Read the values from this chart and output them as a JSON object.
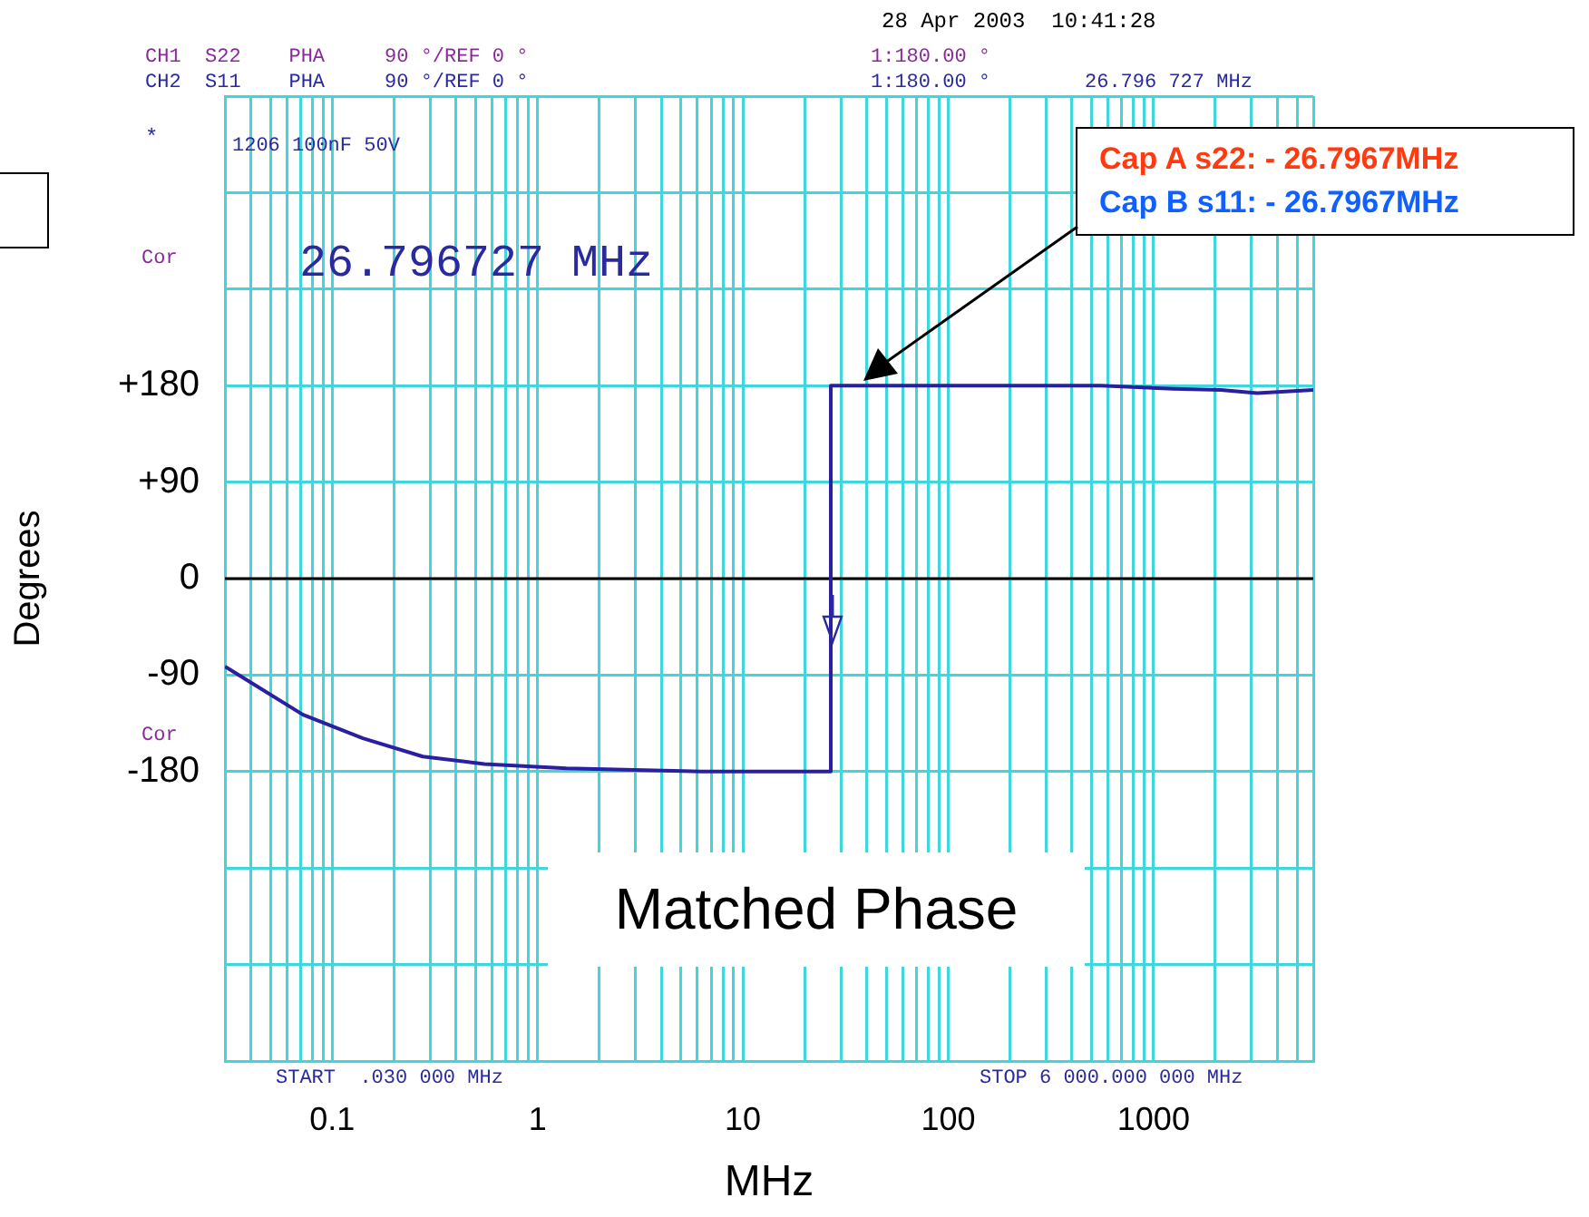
{
  "chart_data": {
    "type": "line",
    "xlabel": "MHz",
    "ylabel": "Degrees",
    "log": "x",
    "grid": true,
    "legend": false,
    "xlim": [
      0.03,
      6000
    ],
    "ylim": [
      -450,
      450
    ],
    "xticks": [
      {
        "value": 0.03,
        "label": null
      },
      {
        "value": 0.04,
        "label": null
      },
      {
        "value": 0.05,
        "label": null
      },
      {
        "value": 0.06,
        "label": null
      },
      {
        "value": 0.07,
        "label": null
      },
      {
        "value": 0.08,
        "label": null
      },
      {
        "value": 0.09,
        "label": null
      },
      {
        "value": 0.1,
        "label": "0.1"
      },
      {
        "value": 0.2,
        "label": null
      },
      {
        "value": 0.3,
        "label": null
      },
      {
        "value": 0.4,
        "label": null
      },
      {
        "value": 0.5,
        "label": null
      },
      {
        "value": 0.6,
        "label": null
      },
      {
        "value": 0.7,
        "label": null
      },
      {
        "value": 0.8,
        "label": null
      },
      {
        "value": 0.9,
        "label": null
      },
      1,
      {
        "value": 2,
        "label": null
      },
      {
        "value": 3,
        "label": null
      },
      {
        "value": 4,
        "label": null
      },
      {
        "value": 5,
        "label": null
      },
      {
        "value": 6,
        "label": null
      },
      {
        "value": 7,
        "label": null
      },
      {
        "value": 8,
        "label": null
      },
      {
        "value": 9,
        "label": null
      },
      10,
      {
        "value": 20,
        "label": null
      },
      {
        "value": 30,
        "label": null
      },
      {
        "value": 40,
        "label": null
      },
      {
        "value": 50,
        "label": null
      },
      {
        "value": 60,
        "label": null
      },
      {
        "value": 70,
        "label": null
      },
      {
        "value": 80,
        "label": null
      },
      {
        "value": 90,
        "label": null
      },
      100,
      {
        "value": 200,
        "label": null
      },
      {
        "value": 300,
        "label": null
      },
      {
        "value": 400,
        "label": null
      },
      {
        "value": 500,
        "label": null
      },
      {
        "value": 600,
        "label": null
      },
      {
        "value": 700,
        "label": null
      },
      {
        "value": 800,
        "label": null
      },
      {
        "value": 900,
        "label": null
      },
      1000,
      {
        "value": 2000,
        "label": null
      },
      {
        "value": 3000,
        "label": null
      },
      {
        "value": 4000,
        "label": null
      },
      {
        "value": 5000,
        "label": null
      },
      {
        "value": 6000,
        "label": null
      }
    ],
    "yticks": [
      {
        "value": -450,
        "label": null
      },
      {
        "value": -360,
        "label": null
      },
      {
        "value": -270,
        "label": null
      },
      -180,
      -90,
      0,
      {
        "value": 90,
        "label": "+90"
      },
      {
        "value": 180,
        "label": "+180"
      },
      {
        "value": 270,
        "label": null
      },
      {
        "value": 360,
        "label": null
      },
      {
        "value": 450,
        "label": null
      }
    ],
    "ref_lines": [
      {
        "axis": "y",
        "value": 0,
        "color": "#000000"
      }
    ],
    "series": [
      {
        "color": "#2a1fa0",
        "x": [
          0.03,
          0.072,
          0.141,
          0.276,
          0.55,
          1.38,
          6.3,
          26.8,
          26.8,
          555,
          1250,
          2130,
          3200,
          6000
        ],
        "values": [
          -82,
          -127,
          -149,
          -166,
          -173,
          -177,
          -180,
          -180,
          180,
          180,
          177,
          176,
          173,
          176
        ]
      }
    ],
    "annotations": [
      "28 Apr 2003  10:41:28",
      "CH1  S22    PHA     90 °/REF 0 °",
      "CH2  S11    PHA     90 °/REF 0 °",
      "1:180.00 °",
      "1:180.00 °",
      "26.796 727 MHz",
      "*",
      "1206 100nF 50V",
      "Cor",
      "26.796727 MHz",
      "Cor",
      "START  .030 000 MHz",
      "STOP 6 000.000 000 MHz",
      "Matched Phase",
      "Cap A s22: - 26.7967MHz",
      "Cap B s11: - 26.7967MHz"
    ]
  }
}
